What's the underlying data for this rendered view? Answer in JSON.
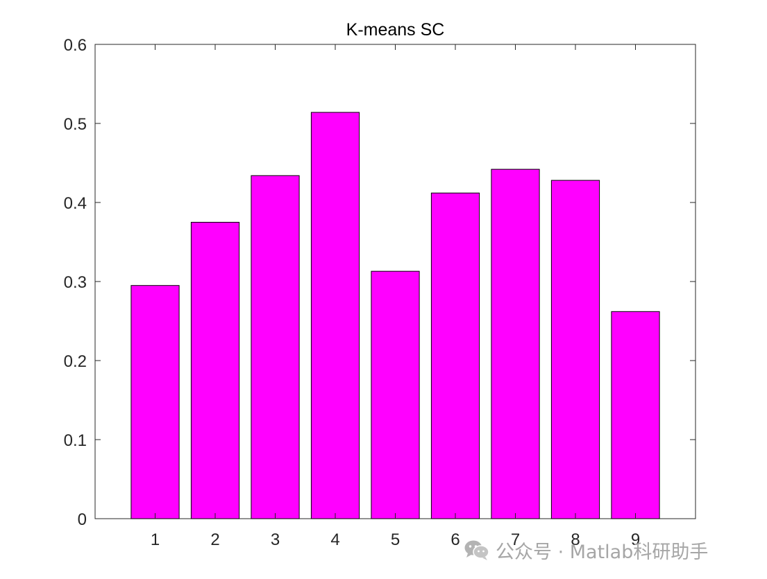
{
  "chart_data": {
    "type": "bar",
    "title": "K-means SC",
    "xlabel": "",
    "ylabel": "",
    "categories": [
      "1",
      "2",
      "3",
      "4",
      "5",
      "6",
      "7",
      "8",
      "9"
    ],
    "values": [
      0.295,
      0.375,
      0.434,
      0.514,
      0.313,
      0.412,
      0.442,
      0.428,
      0.262
    ],
    "ylim": [
      0,
      0.6
    ],
    "xlim": [
      0,
      10
    ],
    "yticks": [
      0,
      0.1,
      0.2,
      0.3,
      0.4,
      0.5,
      0.6
    ],
    "ytick_labels": [
      "0",
      "0.1",
      "0.2",
      "0.3",
      "0.4",
      "0.5",
      "0.6"
    ],
    "bar_color": "#ff00ff",
    "edge_color": "#000000",
    "grid": false,
    "legend": "none"
  },
  "watermark": {
    "icon": "wechat-icon",
    "text": "公众号 · Matlab科研助手",
    "color": "#a6a6a6"
  }
}
